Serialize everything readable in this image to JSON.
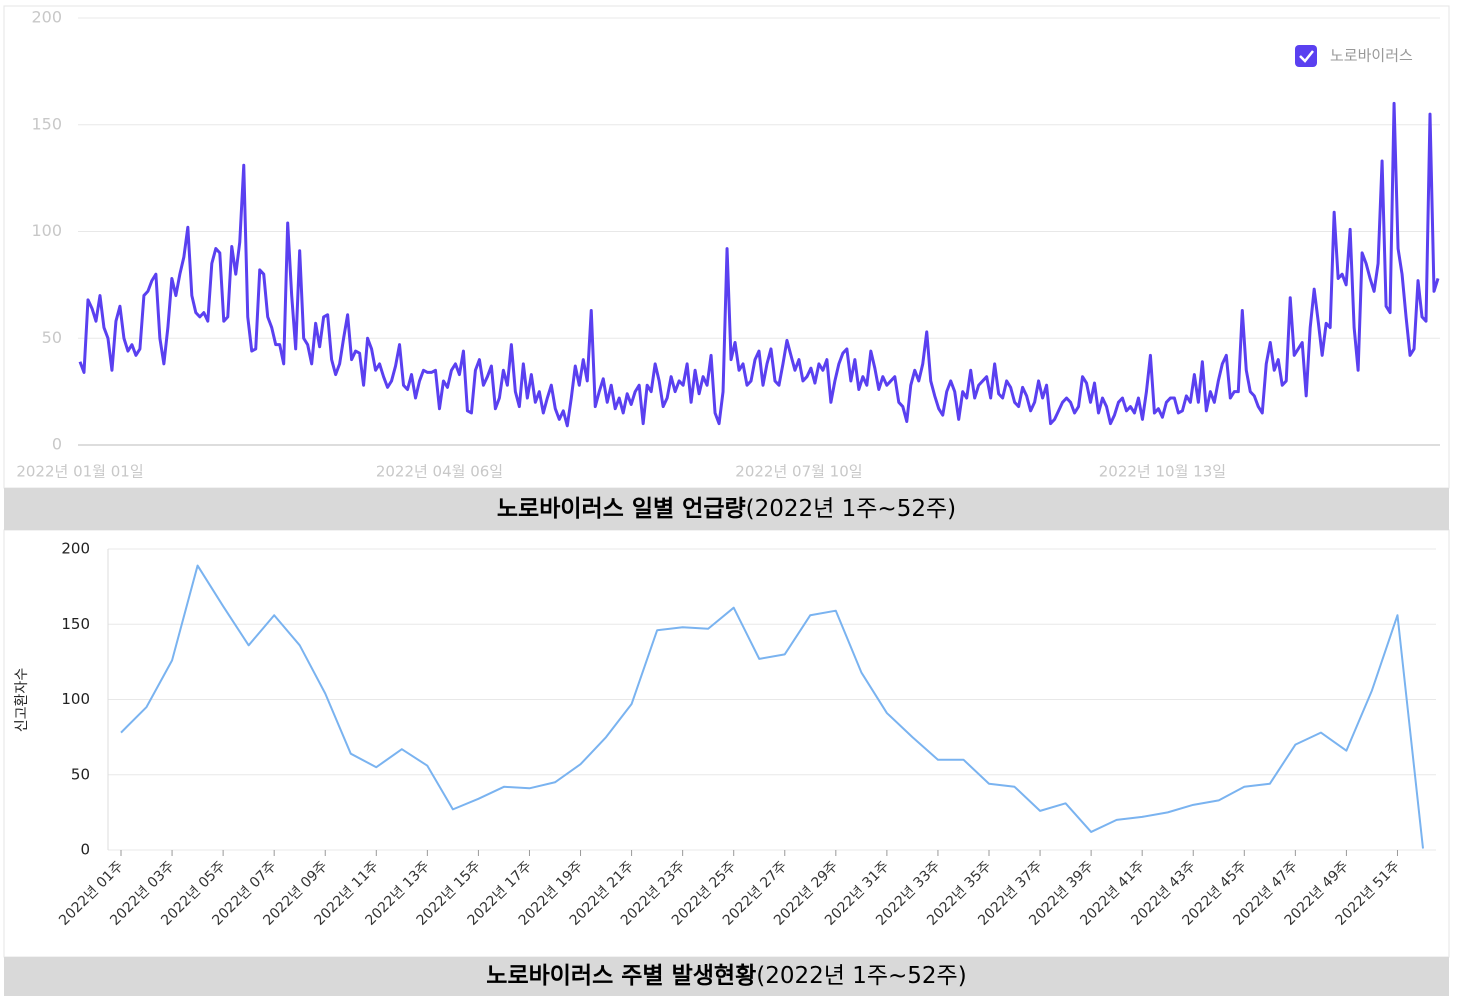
{
  "chart_data": [
    {
      "type": "line",
      "caption_bold": "노로바이러스 일별 언급량",
      "caption_rest": "(2022년 1주~52주)",
      "legend": "top-right",
      "grid": true,
      "categories": [
        "2022년 01월 01일",
        null,
        null,
        null,
        null,
        null,
        null,
        null,
        null,
        null,
        null,
        null,
        null,
        null,
        null,
        null,
        null,
        null,
        null,
        null,
        null,
        null,
        null,
        null,
        null,
        null,
        null,
        null,
        null,
        null,
        null,
        null,
        null,
        null,
        null,
        null,
        null,
        null,
        null,
        null,
        null,
        null,
        null,
        null,
        null,
        null,
        null,
        null,
        null,
        null,
        null,
        null,
        null,
        null,
        null,
        null,
        null,
        null,
        null,
        null,
        null,
        null,
        null,
        null,
        null,
        null,
        null,
        null,
        null,
        null,
        null,
        null,
        null,
        null,
        null,
        null,
        null,
        null,
        null,
        null,
        null,
        null,
        null,
        null,
        null,
        null,
        null,
        null,
        null,
        null,
        "2022년 04월 06일",
        null,
        null,
        null,
        null,
        null,
        null,
        null,
        null,
        null,
        null,
        null,
        null,
        null,
        null,
        null,
        null,
        null,
        null,
        null,
        null,
        null,
        null,
        null,
        null,
        null,
        null,
        null,
        null,
        null,
        null,
        null,
        null,
        null,
        null,
        null,
        null,
        null,
        null,
        null,
        null,
        null,
        null,
        null,
        null,
        null,
        null,
        null,
        null,
        null,
        null,
        null,
        null,
        null,
        null,
        null,
        null,
        null,
        null,
        null,
        null,
        null,
        null,
        null,
        null,
        null,
        null,
        null,
        null,
        null,
        null,
        null,
        null,
        null,
        null,
        null,
        null,
        null,
        null,
        null,
        null,
        null,
        null,
        null,
        null,
        null,
        null,
        null,
        null,
        null,
        "2022년 07월 10일",
        null,
        null,
        null,
        null,
        null,
        null,
        null,
        null,
        null,
        null,
        null,
        null,
        null,
        null,
        null,
        null,
        null,
        null,
        null,
        null,
        null,
        null,
        null,
        null,
        null,
        null,
        null,
        null,
        null,
        null,
        null,
        null,
        null,
        null,
        null,
        null,
        null,
        null,
        null,
        null,
        null,
        null,
        null,
        null,
        null,
        null,
        null,
        null,
        null,
        null,
        null,
        null,
        null,
        null,
        null,
        null,
        null,
        null,
        null,
        null,
        null,
        null,
        null,
        null,
        null,
        null,
        null,
        null,
        null,
        null,
        null,
        null,
        null,
        null,
        null,
        null,
        null,
        null,
        null,
        null,
        null,
        null,
        null,
        null,
        null,
        null,
        null,
        null,
        null,
        null,
        "2022년 10월 13일",
        null,
        null,
        null,
        null,
        null,
        null,
        null,
        null,
        null,
        null,
        null,
        null,
        null,
        null,
        null,
        null,
        null,
        null,
        null,
        null,
        null,
        null,
        null,
        null,
        null,
        null,
        null,
        null,
        null,
        null,
        null,
        null,
        null,
        null,
        null,
        null,
        null,
        null,
        null,
        null,
        null,
        null,
        null,
        null,
        null,
        null,
        null,
        null,
        null,
        null,
        null,
        null,
        null,
        null,
        null,
        null,
        null,
        null,
        null,
        null,
        null,
        null,
        null,
        null,
        null,
        null,
        null,
        null,
        null
      ],
      "series": [
        {
          "name": "노로바이러스",
          "color": "#5a40f0",
          "values": [
            39,
            34,
            68,
            64,
            58,
            70,
            55,
            50,
            35,
            58,
            65,
            50,
            44,
            47,
            42,
            45,
            70,
            72,
            77,
            80,
            50,
            38,
            55,
            78,
            70,
            80,
            88,
            102,
            70,
            62,
            60,
            62,
            58,
            85,
            92,
            90,
            58,
            60,
            93,
            80,
            95,
            131,
            60,
            44,
            45,
            82,
            80,
            60,
            55,
            47,
            47,
            38,
            104,
            70,
            45,
            91,
            50,
            47,
            38,
            57,
            46,
            60,
            61,
            40,
            33,
            38,
            50,
            61,
            40,
            44,
            43,
            28,
            50,
            45,
            35,
            38,
            32,
            27,
            30,
            37,
            47,
            28,
            26,
            33,
            22,
            30,
            35,
            34,
            34,
            35,
            17,
            30,
            27,
            35,
            38,
            33,
            44,
            16,
            15,
            35,
            40,
            28,
            32,
            37,
            17,
            22,
            35,
            28,
            47,
            25,
            18,
            38,
            22,
            33,
            20,
            25,
            15,
            22,
            28,
            17,
            12,
            16,
            9,
            22,
            37,
            28,
            40,
            30,
            63,
            18,
            25,
            31,
            20,
            28,
            17,
            22,
            15,
            24,
            19,
            25,
            28,
            10,
            28,
            25,
            38,
            30,
            18,
            22,
            32,
            25,
            30,
            28,
            38,
            20,
            35,
            24,
            32,
            28,
            42,
            15,
            10,
            25,
            92,
            40,
            48,
            35,
            38,
            28,
            30,
            40,
            44,
            28,
            38,
            45,
            30,
            28,
            38,
            49,
            42,
            35,
            40,
            30,
            32,
            36,
            29,
            38,
            35,
            40,
            20,
            30,
            38,
            43,
            45,
            30,
            40,
            26,
            32,
            28,
            44,
            36,
            26,
            32,
            28,
            30,
            32,
            20,
            18,
            11,
            28,
            35,
            30,
            38,
            53,
            30,
            23,
            17,
            14,
            25,
            30,
            25,
            12,
            25,
            22,
            35,
            22,
            28,
            30,
            32,
            22,
            38,
            24,
            22,
            30,
            27,
            20,
            18,
            27,
            23,
            16,
            20,
            30,
            22,
            28,
            10,
            12,
            16,
            20,
            22,
            20,
            15,
            18,
            32,
            29,
            20,
            29,
            15,
            22,
            18,
            10,
            14,
            20,
            22,
            16,
            18,
            15,
            22,
            12,
            25,
            42,
            15,
            17,
            13,
            20,
            22,
            22,
            15,
            16,
            23,
            20,
            33,
            20,
            39,
            16,
            25,
            20,
            30,
            38,
            42,
            22,
            25,
            25,
            63,
            35,
            25,
            23,
            18,
            15,
            38,
            48,
            35,
            40,
            28,
            30,
            69,
            42,
            45,
            48,
            23,
            55,
            73,
            58,
            42,
            57,
            55,
            109,
            78,
            80,
            75,
            101,
            55,
            35,
            90,
            85,
            78,
            72,
            85,
            133,
            65,
            62,
            160,
            92,
            80,
            60,
            42,
            45,
            77,
            60,
            58,
            155,
            72,
            78
          ]
        }
      ],
      "ylim": [
        0,
        200
      ],
      "yticks": [
        0,
        50,
        100,
        150,
        200
      ]
    },
    {
      "type": "line",
      "caption_bold": "노로바이러스 주별 발생현황",
      "caption_rest": "(2022년 1주~52주)",
      "y_label": "신고환자수",
      "grid": true,
      "categories": [
        "2022년 01주",
        null,
        "2022년 03주",
        null,
        "2022년 05주",
        null,
        "2022년 07주",
        null,
        "2022년 09주",
        null,
        "2022년 11주",
        null,
        "2022년 13주",
        null,
        "2022년 15주",
        null,
        "2022년 17주",
        null,
        "2022년 19주",
        null,
        "2022년 21주",
        null,
        "2022년 23주",
        null,
        "2022년 25주",
        null,
        "2022년 27주",
        null,
        "2022년 29주",
        null,
        "2022년 31주",
        null,
        "2022년 33주",
        null,
        "2022년 35주",
        null,
        "2022년 37주",
        null,
        "2022년 39주",
        null,
        "2022년 41주",
        null,
        "2022년 43주",
        null,
        "2022년 45주",
        null,
        "2022년 47주",
        null,
        "2022년 49주",
        null,
        "2022년 51주",
        null
      ],
      "series": [
        {
          "name": "신고환자수",
          "color": "#7ab3f0",
          "values": [
            78,
            95,
            126,
            189,
            162,
            136,
            156,
            136,
            104,
            64,
            55,
            67,
            56,
            27,
            34,
            42,
            41,
            45,
            57,
            75,
            97,
            146,
            148,
            147,
            161,
            127,
            130,
            156,
            159,
            118,
            91,
            75,
            60,
            60,
            44,
            42,
            26,
            31,
            12,
            20,
            22,
            25,
            30,
            33,
            42,
            44,
            70,
            78,
            66,
            106,
            156,
            1
          ]
        }
      ],
      "ylim": [
        0,
        200
      ],
      "yticks": [
        0,
        50,
        100,
        150,
        200
      ]
    }
  ]
}
